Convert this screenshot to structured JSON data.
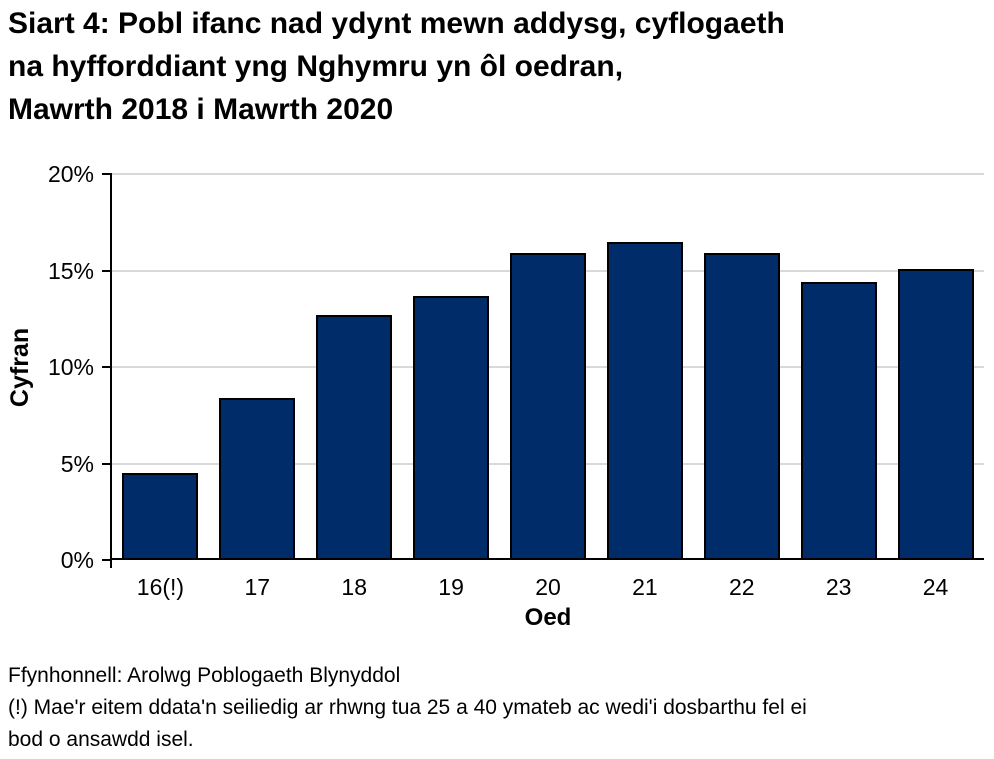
{
  "chart_data": {
    "type": "bar",
    "title": "Siart 4: Pobl ifanc nad ydynt mewn addysg, cyflogaeth\nna hyfforddiant yng Nghymru yn ôl oedran,\nMawrth 2018 i Mawrth 2020",
    "categories": [
      "16(!)",
      "17",
      "18",
      "19",
      "20",
      "21",
      "22",
      "23",
      "24"
    ],
    "values": [
      4.5,
      8.4,
      12.7,
      13.7,
      15.9,
      16.5,
      15.9,
      14.4,
      15.1
    ],
    "xlabel": "Oed",
    "ylabel": "Cyfran",
    "ylim": [
      0,
      20
    ],
    "ytick_step": 5,
    "ytick_labels": [
      "0%",
      "5%",
      "10%",
      "15%",
      "20%"
    ],
    "grid": true,
    "legend": false,
    "bar_color": "#002D6A",
    "bar_border_color": "#000000",
    "gridline_color": "#D9D9D9",
    "axis_color": "#000000"
  },
  "footer": {
    "source": "Ffynhonnell: Arolwg Poblogaeth Blynyddol",
    "note": "(!) Mae'r eitem ddata'n seiliedig ar rhwng tua 25 a 40 ymateb ac wedi'i dosbarthu fel ei\nbod o ansawdd isel."
  }
}
